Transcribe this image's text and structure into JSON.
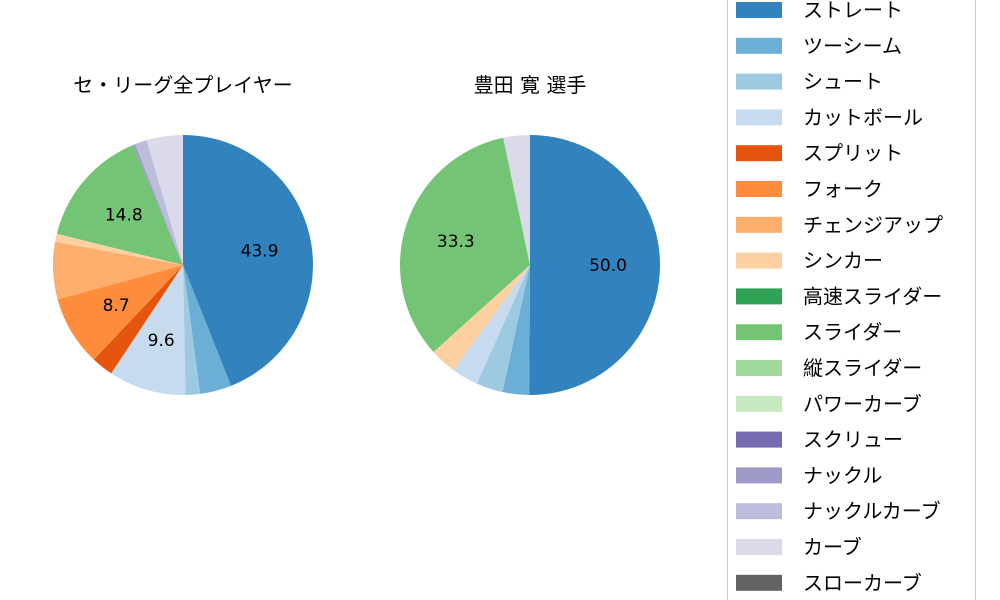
{
  "chart_data": [
    {
      "type": "pie",
      "title": "セ・リーグ全プレイヤー",
      "start_angle": 90,
      "direction": "clockwise",
      "slices": [
        {
          "label": "ストレート",
          "value": 43.9,
          "shown": "43.9"
        },
        {
          "label": "ツーシーム",
          "value": 3.9
        },
        {
          "label": "シュート",
          "value": 1.8
        },
        {
          "label": "カットボール",
          "value": 9.6,
          "shown": "9.6"
        },
        {
          "label": "スプリット",
          "value": 2.7
        },
        {
          "label": "フォーク",
          "value": 8.7,
          "shown": "8.7"
        },
        {
          "label": "チェンジアップ",
          "value": 7.1
        },
        {
          "label": "シンカー",
          "value": 1.0
        },
        {
          "label": "高速スライダー",
          "value": 0.0
        },
        {
          "label": "スライダー",
          "value": 14.8,
          "shown": "14.8"
        },
        {
          "label": "縦スライダー",
          "value": 0.0
        },
        {
          "label": "パワーカーブ",
          "value": 0.0
        },
        {
          "label": "スクリュー",
          "value": 0.0
        },
        {
          "label": "ナックル",
          "value": 0.3
        },
        {
          "label": "ナックルカーブ",
          "value": 1.5
        },
        {
          "label": "カーブ",
          "value": 4.5
        },
        {
          "label": "スローカーブ",
          "value": 0.0
        }
      ]
    },
    {
      "type": "pie",
      "title": "豊田 寛  選手",
      "start_angle": 90,
      "direction": "clockwise",
      "slices": [
        {
          "label": "ストレート",
          "value": 50.0,
          "shown": "50.0"
        },
        {
          "label": "ツーシーム",
          "value": 3.3
        },
        {
          "label": "シュート",
          "value": 3.3
        },
        {
          "label": "カットボール",
          "value": 3.3
        },
        {
          "label": "スプリット",
          "value": 0.0
        },
        {
          "label": "フォーク",
          "value": 0.0
        },
        {
          "label": "チェンジアップ",
          "value": 0.0
        },
        {
          "label": "シンカー",
          "value": 3.3
        },
        {
          "label": "高速スライダー",
          "value": 0.0
        },
        {
          "label": "スライダー",
          "value": 33.3,
          "shown": "33.3"
        },
        {
          "label": "縦スライダー",
          "value": 0.0
        },
        {
          "label": "パワーカーブ",
          "value": 0.0
        },
        {
          "label": "スクリュー",
          "value": 0.0
        },
        {
          "label": "ナックル",
          "value": 0.0
        },
        {
          "label": "ナックルカーブ",
          "value": 0.0
        },
        {
          "label": "カーブ",
          "value": 3.3
        },
        {
          "label": "スローカーブ",
          "value": 0.0
        }
      ]
    }
  ],
  "legend": {
    "placement": "right",
    "items": [
      {
        "label": "ストレート",
        "color": "#3182bd"
      },
      {
        "label": "ツーシーム",
        "color": "#6baed6"
      },
      {
        "label": "シュート",
        "color": "#9ecae1"
      },
      {
        "label": "カットボール",
        "color": "#c6dbef"
      },
      {
        "label": "スプリット",
        "color": "#e6550d"
      },
      {
        "label": "フォーク",
        "color": "#fd8d3c"
      },
      {
        "label": "チェンジアップ",
        "color": "#fdae6b"
      },
      {
        "label": "シンカー",
        "color": "#fdd0a2"
      },
      {
        "label": "高速スライダー",
        "color": "#31a354"
      },
      {
        "label": "スライダー",
        "color": "#74c476"
      },
      {
        "label": "縦スライダー",
        "color": "#a1d99b"
      },
      {
        "label": "パワーカーブ",
        "color": "#c7e9c0"
      },
      {
        "label": "スクリュー",
        "color": "#756bb1"
      },
      {
        "label": "ナックル",
        "color": "#9e9ac8"
      },
      {
        "label": "ナックルカーブ",
        "color": "#bcbddc"
      },
      {
        "label": "カーブ",
        "color": "#dadaeb"
      },
      {
        "label": "スローカーブ",
        "color": "#636363"
      }
    ]
  }
}
